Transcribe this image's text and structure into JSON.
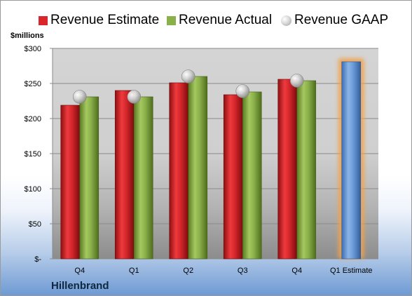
{
  "company": "Hillenbrand",
  "chart_data": {
    "type": "bar",
    "ylabel": "$millions",
    "ylim": [
      0,
      300
    ],
    "yticks": [
      "$-",
      "$50",
      "$100",
      "$150",
      "$200",
      "$250",
      "$300"
    ],
    "categories": [
      "Q4",
      "Q1",
      "Q2",
      "Q3",
      "Q4",
      "Q1 Estimate"
    ],
    "series": [
      {
        "name": "Revenue Estimate",
        "kind": "bar",
        "color": "#d9262b",
        "values": [
          219,
          240,
          251,
          234,
          256,
          null
        ]
      },
      {
        "name": "Revenue Actual",
        "kind": "bar",
        "color": "#8ab04a",
        "values": [
          231,
          231,
          260,
          238,
          254,
          null
        ]
      },
      {
        "name": "Revenue GAAP",
        "kind": "marker",
        "color": "#c8c8c8",
        "values": [
          231,
          231,
          260,
          239,
          254,
          null
        ]
      },
      {
        "name": "Q1 Estimate",
        "kind": "bar",
        "color": "#6a9bd8",
        "highlight": "#f2a24a",
        "values": [
          null,
          null,
          null,
          null,
          null,
          281
        ]
      }
    ],
    "grid": true,
    "legend": "top"
  }
}
